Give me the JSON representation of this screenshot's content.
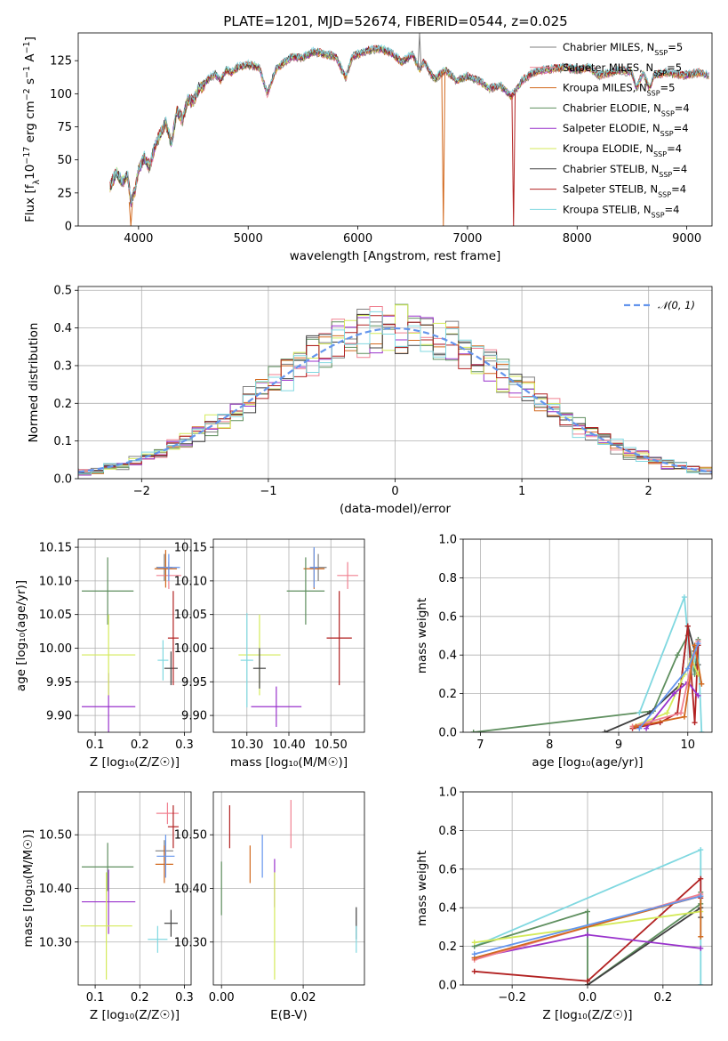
{
  "figure": {
    "title": "PLATE=1201, MJD=52674, FIBERID=0544, z=0.025"
  },
  "models": [
    {
      "name": "Chabrier MILES, N$_{SSP}$=5",
      "legend": "Chabrier MILES, N",
      "sub": "SSP",
      "suffix": "=5",
      "color": "#7f7f7f"
    },
    {
      "name": "Salpeter MILES, N$_{SSP}$=5",
      "legend": "Salpeter MILES, N",
      "sub": "SSP",
      "suffix": "=5",
      "color": "#f08090"
    },
    {
      "name": "Kroupa MILES, N$_{SSP}$=5",
      "legend": "Kroupa MILES, N",
      "sub": "SSP",
      "suffix": "=5",
      "color": "#d2691e"
    },
    {
      "name": "Chabrier ELODIE, N$_{SSP}$=4",
      "legend": "Chabrier ELODIE, N",
      "sub": "SSP",
      "suffix": "=4",
      "color": "#5f8f5f"
    },
    {
      "name": "Salpeter ELODIE, N$_{SSP}$=4",
      "legend": "Salpeter ELODIE, N",
      "sub": "SSP",
      "suffix": "=4",
      "color": "#9932cc"
    },
    {
      "name": "Kroupa ELODIE, N$_{SSP}$=4",
      "legend": "Kroupa ELODIE, N",
      "sub": "SSP",
      "suffix": "=4",
      "color": "#d4ea5a"
    },
    {
      "name": "Chabrier STELIB, N$_{SSP}$=4",
      "legend": "Chabrier STELIB, N",
      "sub": "SSP",
      "suffix": "=4",
      "color": "#404040"
    },
    {
      "name": "Salpeter STELIB, N$_{SSP}$=4",
      "legend": "Salpeter STELIB, N",
      "sub": "SSP",
      "suffix": "=4",
      "color": "#b22222"
    },
    {
      "name": "Kroupa STELIB, N$_{SSP}$=4",
      "legend": "Kroupa STELIB, N",
      "sub": "SSP",
      "suffix": "=4",
      "color": "#80d8e0"
    }
  ],
  "chart_data": [
    {
      "id": "spectrum",
      "type": "line",
      "xlabel": "wavelength [Angstrom, rest frame]",
      "ylabel_parts": [
        "Flux [f",
        "λ",
        "10",
        "−17",
        " erg cm",
        "−2",
        " s",
        "−1",
        " A",
        "−1",
        "]"
      ],
      "xlim": [
        3450,
        9230
      ],
      "ylim": [
        0,
        146
      ],
      "xticks": [
        4000,
        5000,
        6000,
        7000,
        8000,
        9000
      ],
      "yticks": [
        0,
        25,
        50,
        75,
        100,
        125
      ],
      "x": [
        3740,
        3800,
        3850,
        3900,
        3930,
        3970,
        4000,
        4050,
        4100,
        4150,
        4200,
        4250,
        4300,
        4350,
        4400,
        4450,
        4500,
        4550,
        4600,
        4650,
        4700,
        4750,
        4800,
        4850,
        4900,
        5000,
        5100,
        5175,
        5250,
        5300,
        5400,
        5500,
        5600,
        5700,
        5800,
        5890,
        5950,
        6000,
        6100,
        6200,
        6300,
        6400,
        6500,
        6563,
        6600,
        6700,
        6800,
        6900,
        7000,
        7100,
        7200,
        7300,
        7400,
        7500,
        7600,
        7700,
        7800,
        7900,
        8000,
        8100,
        8200,
        8300,
        8400,
        8500,
        8542,
        8600,
        8662,
        8700,
        8800,
        8900,
        9000,
        9100,
        9200
      ],
      "series": [
        {
          "y": [
            30,
            40,
            33,
            38,
            18,
            28,
            42,
            52,
            45,
            60,
            70,
            78,
            62,
            88,
            80,
            96,
            94,
            104,
            107,
            112,
            115,
            110,
            118,
            116,
            120,
            122,
            120,
            100,
            118,
            122,
            128,
            127,
            132,
            130,
            128,
            112,
            128,
            130,
            133,
            134,
            131,
            124,
            130,
            118,
            124,
            111,
            118,
            110,
            113,
            110,
            104,
            106,
            98,
            110,
            116,
            118,
            119,
            120,
            118,
            120,
            114,
            116,
            118,
            116,
            104,
            116,
            104,
            114,
            116,
            115,
            114,
            116,
            114
          ]
        }
      ],
      "spikes": [
        {
          "x": 6563,
          "y": 146,
          "color": "#7f7f7f"
        },
        {
          "x": 3930,
          "y": 0,
          "color": "#d2691e"
        },
        {
          "x": 6780,
          "y": 0,
          "color": "#d2691e"
        },
        {
          "x": 7420,
          "y": 0,
          "color": "#b22222"
        }
      ]
    },
    {
      "id": "residuals",
      "type": "histogram",
      "xlabel": "(data-model)/error",
      "ylabel": "Normed distribution",
      "xlim": [
        -2.5,
        2.5
      ],
      "ylim": [
        0,
        0.51
      ],
      "xticks": [
        -2,
        -1,
        0,
        1,
        2
      ],
      "yticks": [
        0.0,
        0.1,
        0.2,
        0.3,
        0.4,
        0.5
      ],
      "bin_width": 0.1,
      "series_label": "𝒩(0, 1)",
      "gaussian_color": "#6495ed"
    },
    {
      "id": "age_vs_Z",
      "type": "scatter",
      "xlabel": "Z [log₁₀(Z/Z☉)]",
      "ylabel": "age  [log₁₀(age/yr)]",
      "xlim": [
        0.062,
        0.315
      ],
      "ylim": [
        9.875,
        10.162
      ],
      "xticks": [
        0.1,
        0.2,
        0.3
      ],
      "yticks": [
        9.9,
        9.95,
        10.0,
        10.05,
        10.1,
        10.15
      ],
      "points": [
        {
          "x": 0.255,
          "y": 10.12,
          "xerr": 0.018,
          "yerr": 0.02,
          "color": "#7f7f7f"
        },
        {
          "x": 0.265,
          "y": 10.108,
          "xerr": 0.028,
          "yerr": 0.02,
          "color": "#f08090"
        },
        {
          "x": 0.258,
          "y": 10.118,
          "xerr": 0.025,
          "yerr": 0.028,
          "color": "#d2691e"
        },
        {
          "x": 0.128,
          "y": 10.085,
          "xerr": 0.058,
          "yerr": 0.05,
          "color": "#5f8f5f"
        },
        {
          "x": 0.13,
          "y": 9.913,
          "xerr": 0.06,
          "yerr": 0.05,
          "color": "#9932cc"
        },
        {
          "x": 0.13,
          "y": 9.99,
          "xerr": 0.06,
          "yerr": 0.06,
          "color": "#d4ea5a"
        },
        {
          "x": 0.27,
          "y": 9.97,
          "xerr": 0.015,
          "yerr": 0.025,
          "color": "#404040"
        },
        {
          "x": 0.275,
          "y": 10.015,
          "xerr": 0.012,
          "yerr": 0.07,
          "color": "#b22222"
        },
        {
          "x": 0.252,
          "y": 9.982,
          "xerr": 0.012,
          "yerr": 0.03,
          "color": "#80d8e0"
        },
        {
          "x": 0.265,
          "y": 10.12,
          "xerr": 0.025,
          "yerr": 0.02,
          "color": "#6495ed"
        }
      ]
    },
    {
      "id": "age_vs_mass",
      "type": "scatter",
      "xlabel": "mass [log₁₀(M/M☉)]",
      "ylabel": "",
      "xlim": [
        10.22,
        10.58
      ],
      "ylim": [
        9.875,
        10.162
      ],
      "xticks": [
        10.3,
        10.4,
        10.5
      ],
      "yticks": [
        9.9,
        9.95,
        10.0,
        10.05,
        10.1,
        10.15
      ],
      "points": [
        {
          "x": 10.47,
          "y": 10.12,
          "xerr": 0.02,
          "yerr": 0.02,
          "color": "#7f7f7f"
        },
        {
          "x": 10.54,
          "y": 10.108,
          "xerr": 0.025,
          "yerr": 0.02,
          "color": "#f08090"
        },
        {
          "x": 10.46,
          "y": 10.118,
          "xerr": 0.025,
          "yerr": 0.03,
          "color": "#d2691e"
        },
        {
          "x": 10.44,
          "y": 10.085,
          "xerr": 0.045,
          "yerr": 0.05,
          "color": "#5f8f5f"
        },
        {
          "x": 10.37,
          "y": 9.913,
          "xerr": 0.06,
          "yerr": 0.03,
          "color": "#9932cc"
        },
        {
          "x": 10.33,
          "y": 9.99,
          "xerr": 0.05,
          "yerr": 0.06,
          "color": "#d4ea5a"
        },
        {
          "x": 10.33,
          "y": 9.97,
          "xerr": 0.015,
          "yerr": 0.03,
          "color": "#404040"
        },
        {
          "x": 10.52,
          "y": 10.015,
          "xerr": 0.03,
          "yerr": 0.07,
          "color": "#b22222"
        },
        {
          "x": 10.3,
          "y": 9.982,
          "xerr": 0.015,
          "yerr": 0.07,
          "color": "#80d8e0"
        },
        {
          "x": 10.46,
          "y": 10.12,
          "xerr": 0.01,
          "yerr": 0.03,
          "color": "#6495ed"
        }
      ]
    },
    {
      "id": "weight_vs_age",
      "type": "line",
      "xlabel": "age  [log₁₀(age/yr)]",
      "ylabel": "mass weight",
      "xlim": [
        6.75,
        10.35
      ],
      "ylim": [
        0,
        1
      ],
      "xticks": [
        7,
        8,
        9,
        10
      ],
      "yticks": [
        0.0,
        0.2,
        0.4,
        0.6,
        0.8,
        1.0
      ],
      "series": [
        {
          "color": "#5f8f5f",
          "x": [
            6.9,
            9.5,
            9.85,
            10.0,
            10.1,
            10.15
          ],
          "y": [
            0.0,
            0.11,
            0.4,
            0.5,
            0.3,
            0.48
          ]
        },
        {
          "color": "#404040",
          "x": [
            8.8,
            9.45,
            9.9,
            10.0,
            10.1,
            10.15
          ],
          "y": [
            0.0,
            0.1,
            0.25,
            0.55,
            0.42,
            0.35
          ]
        },
        {
          "color": "#80d8e0",
          "x": [
            9.3,
            9.95,
            10.05,
            10.15,
            10.2
          ],
          "y": [
            0.1,
            0.7,
            0.3,
            0.45,
            0.0
          ]
        },
        {
          "color": "#b22222",
          "x": [
            9.2,
            9.6,
            9.85,
            10.0,
            10.1,
            10.15
          ],
          "y": [
            0.02,
            0.05,
            0.1,
            0.55,
            0.05,
            0.45
          ]
        },
        {
          "color": "#d4ea5a",
          "x": [
            9.2,
            9.7,
            9.95,
            10.05,
            10.15
          ],
          "y": [
            0.03,
            0.1,
            0.3,
            0.38,
            0.3
          ]
        },
        {
          "color": "#9932cc",
          "x": [
            9.4,
            9.8,
            10.0,
            10.15
          ],
          "y": [
            0.02,
            0.2,
            0.26,
            0.19
          ]
        },
        {
          "color": "#f08090",
          "x": [
            9.2,
            9.9,
            10.05,
            10.15
          ],
          "y": [
            0.03,
            0.1,
            0.35,
            0.47
          ]
        },
        {
          "color": "#d2691e",
          "x": [
            9.25,
            9.95,
            10.1,
            10.2
          ],
          "y": [
            0.03,
            0.08,
            0.45,
            0.25
          ]
        },
        {
          "color": "#6495ed",
          "x": [
            9.3,
            10.0,
            10.15
          ],
          "y": [
            0.02,
            0.33,
            0.46
          ]
        }
      ]
    },
    {
      "id": "mass_vs_Z",
      "type": "scatter",
      "xlabel": "Z [log₁₀(Z/Z☉)]",
      "ylabel": "mass [log₁₀(M/M☉)]",
      "xlim": [
        0.062,
        0.315
      ],
      "ylim": [
        10.22,
        10.58
      ],
      "xticks": [
        0.1,
        0.2,
        0.3
      ],
      "yticks": [
        10.3,
        10.4,
        10.5
      ],
      "points": [
        {
          "x": 0.255,
          "y": 10.47,
          "xerr": 0.02,
          "yerr": 0.02,
          "color": "#7f7f7f"
        },
        {
          "x": 0.262,
          "y": 10.54,
          "xerr": 0.025,
          "yerr": 0.02,
          "color": "#f08090"
        },
        {
          "x": 0.255,
          "y": 10.445,
          "xerr": 0.02,
          "yerr": 0.035,
          "color": "#d2691e"
        },
        {
          "x": 0.128,
          "y": 10.44,
          "xerr": 0.058,
          "yerr": 0.045,
          "color": "#5f8f5f"
        },
        {
          "x": 0.13,
          "y": 10.375,
          "xerr": 0.06,
          "yerr": 0.06,
          "color": "#9932cc"
        },
        {
          "x": 0.125,
          "y": 10.33,
          "xerr": 0.058,
          "yerr": 0.1,
          "color": "#d4ea5a"
        },
        {
          "x": 0.27,
          "y": 10.335,
          "xerr": 0.015,
          "yerr": 0.025,
          "color": "#404040"
        },
        {
          "x": 0.275,
          "y": 10.515,
          "xerr": 0.012,
          "yerr": 0.04,
          "color": "#b22222"
        },
        {
          "x": 0.24,
          "y": 10.305,
          "xerr": 0.022,
          "yerr": 0.025,
          "color": "#80d8e0"
        },
        {
          "x": 0.258,
          "y": 10.46,
          "xerr": 0.02,
          "yerr": 0.04,
          "color": "#6495ed"
        }
      ]
    },
    {
      "id": "mass_vs_EBV",
      "type": "scatter",
      "xlabel": "E(B-V)",
      "ylabel": "",
      "xlim": [
        -0.002,
        0.035
      ],
      "ylim": [
        10.22,
        10.58
      ],
      "xticks": [
        0.0,
        0.02
      ],
      "yticks": [
        10.3,
        10.4,
        10.5
      ],
      "points": [
        {
          "x": 0.017,
          "y": 10.52,
          "xerr": 0.0,
          "yerr": 0.045,
          "color": "#f08090"
        },
        {
          "x": 0.0,
          "y": 10.4,
          "xerr": 0.0,
          "yerr": 0.05,
          "color": "#5f8f5f"
        },
        {
          "x": 0.007,
          "y": 10.445,
          "xerr": 0.0,
          "yerr": 0.035,
          "color": "#d2691e"
        },
        {
          "x": 0.013,
          "y": 10.41,
          "xerr": 0.0,
          "yerr": 0.045,
          "color": "#9932cc"
        },
        {
          "x": 0.013,
          "y": 10.33,
          "xerr": 0.0,
          "yerr": 0.1,
          "color": "#d4ea5a"
        },
        {
          "x": 0.033,
          "y": 10.335,
          "xerr": 0.0,
          "yerr": 0.03,
          "color": "#404040"
        },
        {
          "x": 0.002,
          "y": 10.515,
          "xerr": 0.0,
          "yerr": 0.04,
          "color": "#b22222"
        },
        {
          "x": 0.033,
          "y": 10.305,
          "xerr": 0.0,
          "yerr": 0.025,
          "color": "#80d8e0"
        },
        {
          "x": 0.01,
          "y": 10.46,
          "xerr": 0.0,
          "yerr": 0.04,
          "color": "#6495ed"
        }
      ]
    },
    {
      "id": "weight_vs_Z",
      "type": "line",
      "xlabel": "Z [log₁₀(Z/Z☉)]",
      "ylabel": "mass weight",
      "xlim": [
        -0.33,
        0.33
      ],
      "ylim": [
        0,
        1
      ],
      "xticks": [
        -0.2,
        0.0,
        0.2
      ],
      "yticks": [
        0.0,
        0.2,
        0.4,
        0.6,
        0.8,
        1.0
      ],
      "series": [
        {
          "color": "#80d8e0",
          "x": [
            -0.3,
            0.3,
            0.3
          ],
          "y": [
            0.2,
            0.7,
            0.0
          ]
        },
        {
          "color": "#5f8f5f",
          "x": [
            -0.3,
            0.0,
            0.0,
            0.3,
            0.3
          ],
          "y": [
            0.2,
            0.38,
            0.0,
            0.42,
            0.48
          ]
        },
        {
          "color": "#404040",
          "x": [
            0.0,
            0.3,
            0.3
          ],
          "y": [
            0.0,
            0.4,
            0.35
          ]
        },
        {
          "color": "#b22222",
          "x": [
            -0.3,
            0.0,
            0.3,
            0.3
          ],
          "y": [
            0.07,
            0.02,
            0.55,
            0.45
          ]
        },
        {
          "color": "#d4ea5a",
          "x": [
            -0.3,
            0.3
          ],
          "y": [
            0.22,
            0.38
          ]
        },
        {
          "color": "#9932cc",
          "x": [
            -0.3,
            0.0,
            0.3
          ],
          "y": [
            0.14,
            0.26,
            0.19
          ]
        },
        {
          "color": "#f08090",
          "x": [
            -0.3,
            0.3
          ],
          "y": [
            0.13,
            0.47
          ]
        },
        {
          "color": "#d2691e",
          "x": [
            -0.3,
            0.3,
            0.3
          ],
          "y": [
            0.14,
            0.46,
            0.25
          ]
        },
        {
          "color": "#6495ed",
          "x": [
            -0.3,
            0.3
          ],
          "y": [
            0.16,
            0.46
          ]
        }
      ]
    }
  ]
}
